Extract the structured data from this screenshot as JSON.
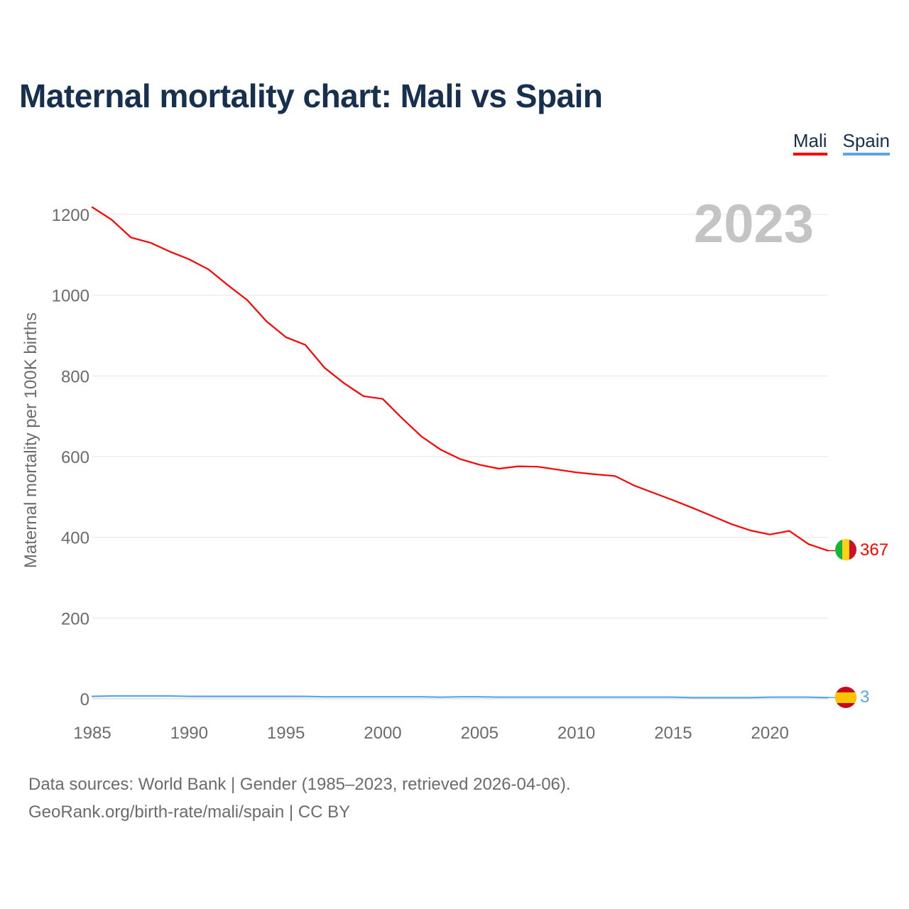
{
  "title": "Maternal mortality chart: Mali vs Spain",
  "legend": [
    {
      "label": "Mali",
      "color": "#ff0000"
    },
    {
      "label": "Spain",
      "color": "#5aa5e8"
    }
  ],
  "footer": {
    "line1": "Data sources: World Bank | Gender (1985–2023, retrieved 2026-04-06).",
    "link": "GeoRank.org/birth-rate/mali/spain",
    "license": " | CC BY"
  },
  "chart_data": {
    "type": "line",
    "title": "Maternal mortality chart: Mali vs Spain",
    "year_label": "2023",
    "xlabel": "",
    "ylabel": "Maternal mortality per 100K births",
    "xlim": [
      1985,
      2023
    ],
    "ylim": [
      0,
      1250
    ],
    "xticks": [
      1985,
      1990,
      1995,
      2000,
      2005,
      2010,
      2015,
      2020
    ],
    "yticks": [
      0,
      200,
      400,
      600,
      800,
      1000,
      1200
    ],
    "x": [
      1985,
      1986,
      1987,
      1988,
      1989,
      1990,
      1991,
      1992,
      1993,
      1994,
      1995,
      1996,
      1997,
      1998,
      1999,
      2000,
      2001,
      2002,
      2003,
      2004,
      2005,
      2006,
      2007,
      2008,
      2009,
      2010,
      2011,
      2012,
      2013,
      2014,
      2015,
      2016,
      2017,
      2018,
      2019,
      2020,
      2021,
      2022,
      2023
    ],
    "series": [
      {
        "name": "Mali",
        "color": "#ff0000",
        "end_label": "367",
        "values": [
          1218,
          1187,
          1143,
          1130,
          1108,
          1089,
          1064,
          1025,
          988,
          935,
          896,
          877,
          820,
          782,
          750,
          743,
          695,
          650,
          617,
          594,
          580,
          570,
          576,
          575,
          568,
          561,
          556,
          552,
          528,
          510,
          492,
          473,
          453,
          433,
          417,
          407,
          416,
          383,
          367
        ]
      },
      {
        "name": "Spain",
        "color": "#5aa5e8",
        "end_label": "3",
        "values": [
          6,
          7,
          7,
          7,
          7,
          6,
          6,
          6,
          6,
          6,
          6,
          6,
          5,
          5,
          5,
          5,
          5,
          5,
          4,
          5,
          5,
          4,
          4,
          4,
          4,
          4,
          4,
          4,
          4,
          4,
          4,
          3,
          3,
          3,
          3,
          4,
          4,
          4,
          3
        ]
      }
    ]
  }
}
